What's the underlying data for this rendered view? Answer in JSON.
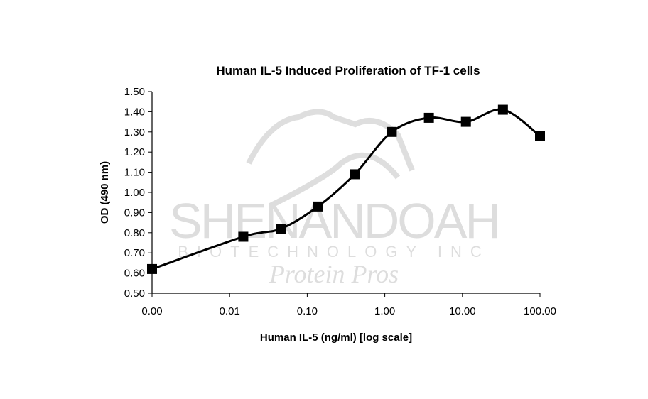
{
  "chart_data": {
    "type": "line",
    "title": "Human IL-5 Induced Proliferation of TF-1 cells",
    "xlabel": "Human IL-5 (ng/ml) [log scale]",
    "ylabel": "OD (490 nm)",
    "x_scale": "log",
    "xlim": [
      0.001,
      100
    ],
    "ylim": [
      0.5,
      1.5
    ],
    "x_tick_labels": [
      "0.00",
      "0.01",
      "0.10",
      "1.00",
      "10.00",
      "100.00"
    ],
    "x_tick_values": [
      0.001,
      0.01,
      0.1,
      1,
      10,
      100
    ],
    "y_tick_labels": [
      "0.50",
      "0.60",
      "0.70",
      "0.80",
      "0.90",
      "1.00",
      "1.10",
      "1.20",
      "1.30",
      "1.40",
      "1.50"
    ],
    "y_tick_values": [
      0.5,
      0.6,
      0.7,
      0.8,
      0.9,
      1.0,
      1.1,
      1.2,
      1.3,
      1.4,
      1.5
    ],
    "grid": false,
    "series": [
      {
        "name": "OD",
        "color": "#000000",
        "marker": "square",
        "x": [
          0.001,
          0.015,
          0.046,
          0.137,
          0.41,
          1.23,
          3.7,
          11.1,
          33.3,
          100
        ],
        "y": [
          0.62,
          0.78,
          0.82,
          0.93,
          1.09,
          1.3,
          1.37,
          1.35,
          1.41,
          1.28
        ]
      }
    ]
  },
  "watermark": {
    "name": "SHENANDOAH",
    "sub": "BIOTECHNOLOGY INC",
    "tagline": "Protein Pros"
  }
}
